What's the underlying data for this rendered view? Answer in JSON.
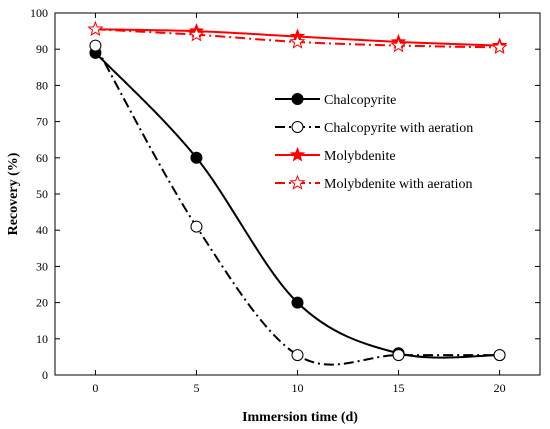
{
  "chart_data": {
    "type": "line",
    "title": "",
    "xlabel": "Immersion time (d)",
    "ylabel": "Recovery (%)",
    "xlim": [
      -2,
      22
    ],
    "ylim": [
      0,
      100
    ],
    "xticks": [
      0,
      5,
      10,
      15,
      20
    ],
    "yticks": [
      0,
      10,
      20,
      30,
      40,
      50,
      60,
      70,
      80,
      90,
      100
    ],
    "grid": false,
    "legend_position": "upper-right inside plot",
    "x": [
      0,
      5,
      10,
      15,
      20
    ],
    "series": [
      {
        "name": "Chalcopyrite",
        "values": [
          89,
          60,
          20,
          6,
          5.5
        ],
        "color": "#000000",
        "line_style": "solid",
        "marker": "filled-circle"
      },
      {
        "name": "Chalcopyrite with aeration",
        "values": [
          91,
          41,
          5.5,
          5.5,
          5.5
        ],
        "color": "#000000",
        "line_style": "dash-dot",
        "marker": "open-circle"
      },
      {
        "name": "Molybdenite",
        "values": [
          95.5,
          95,
          93.5,
          92,
          91
        ],
        "color": "#ff0000",
        "line_style": "solid",
        "marker": "filled-star"
      },
      {
        "name": "Molybdenite with aeration",
        "values": [
          95.5,
          94,
          92,
          91,
          90.5
        ],
        "color": "#ff0000",
        "line_style": "dash-dot",
        "marker": "open-star"
      }
    ]
  }
}
